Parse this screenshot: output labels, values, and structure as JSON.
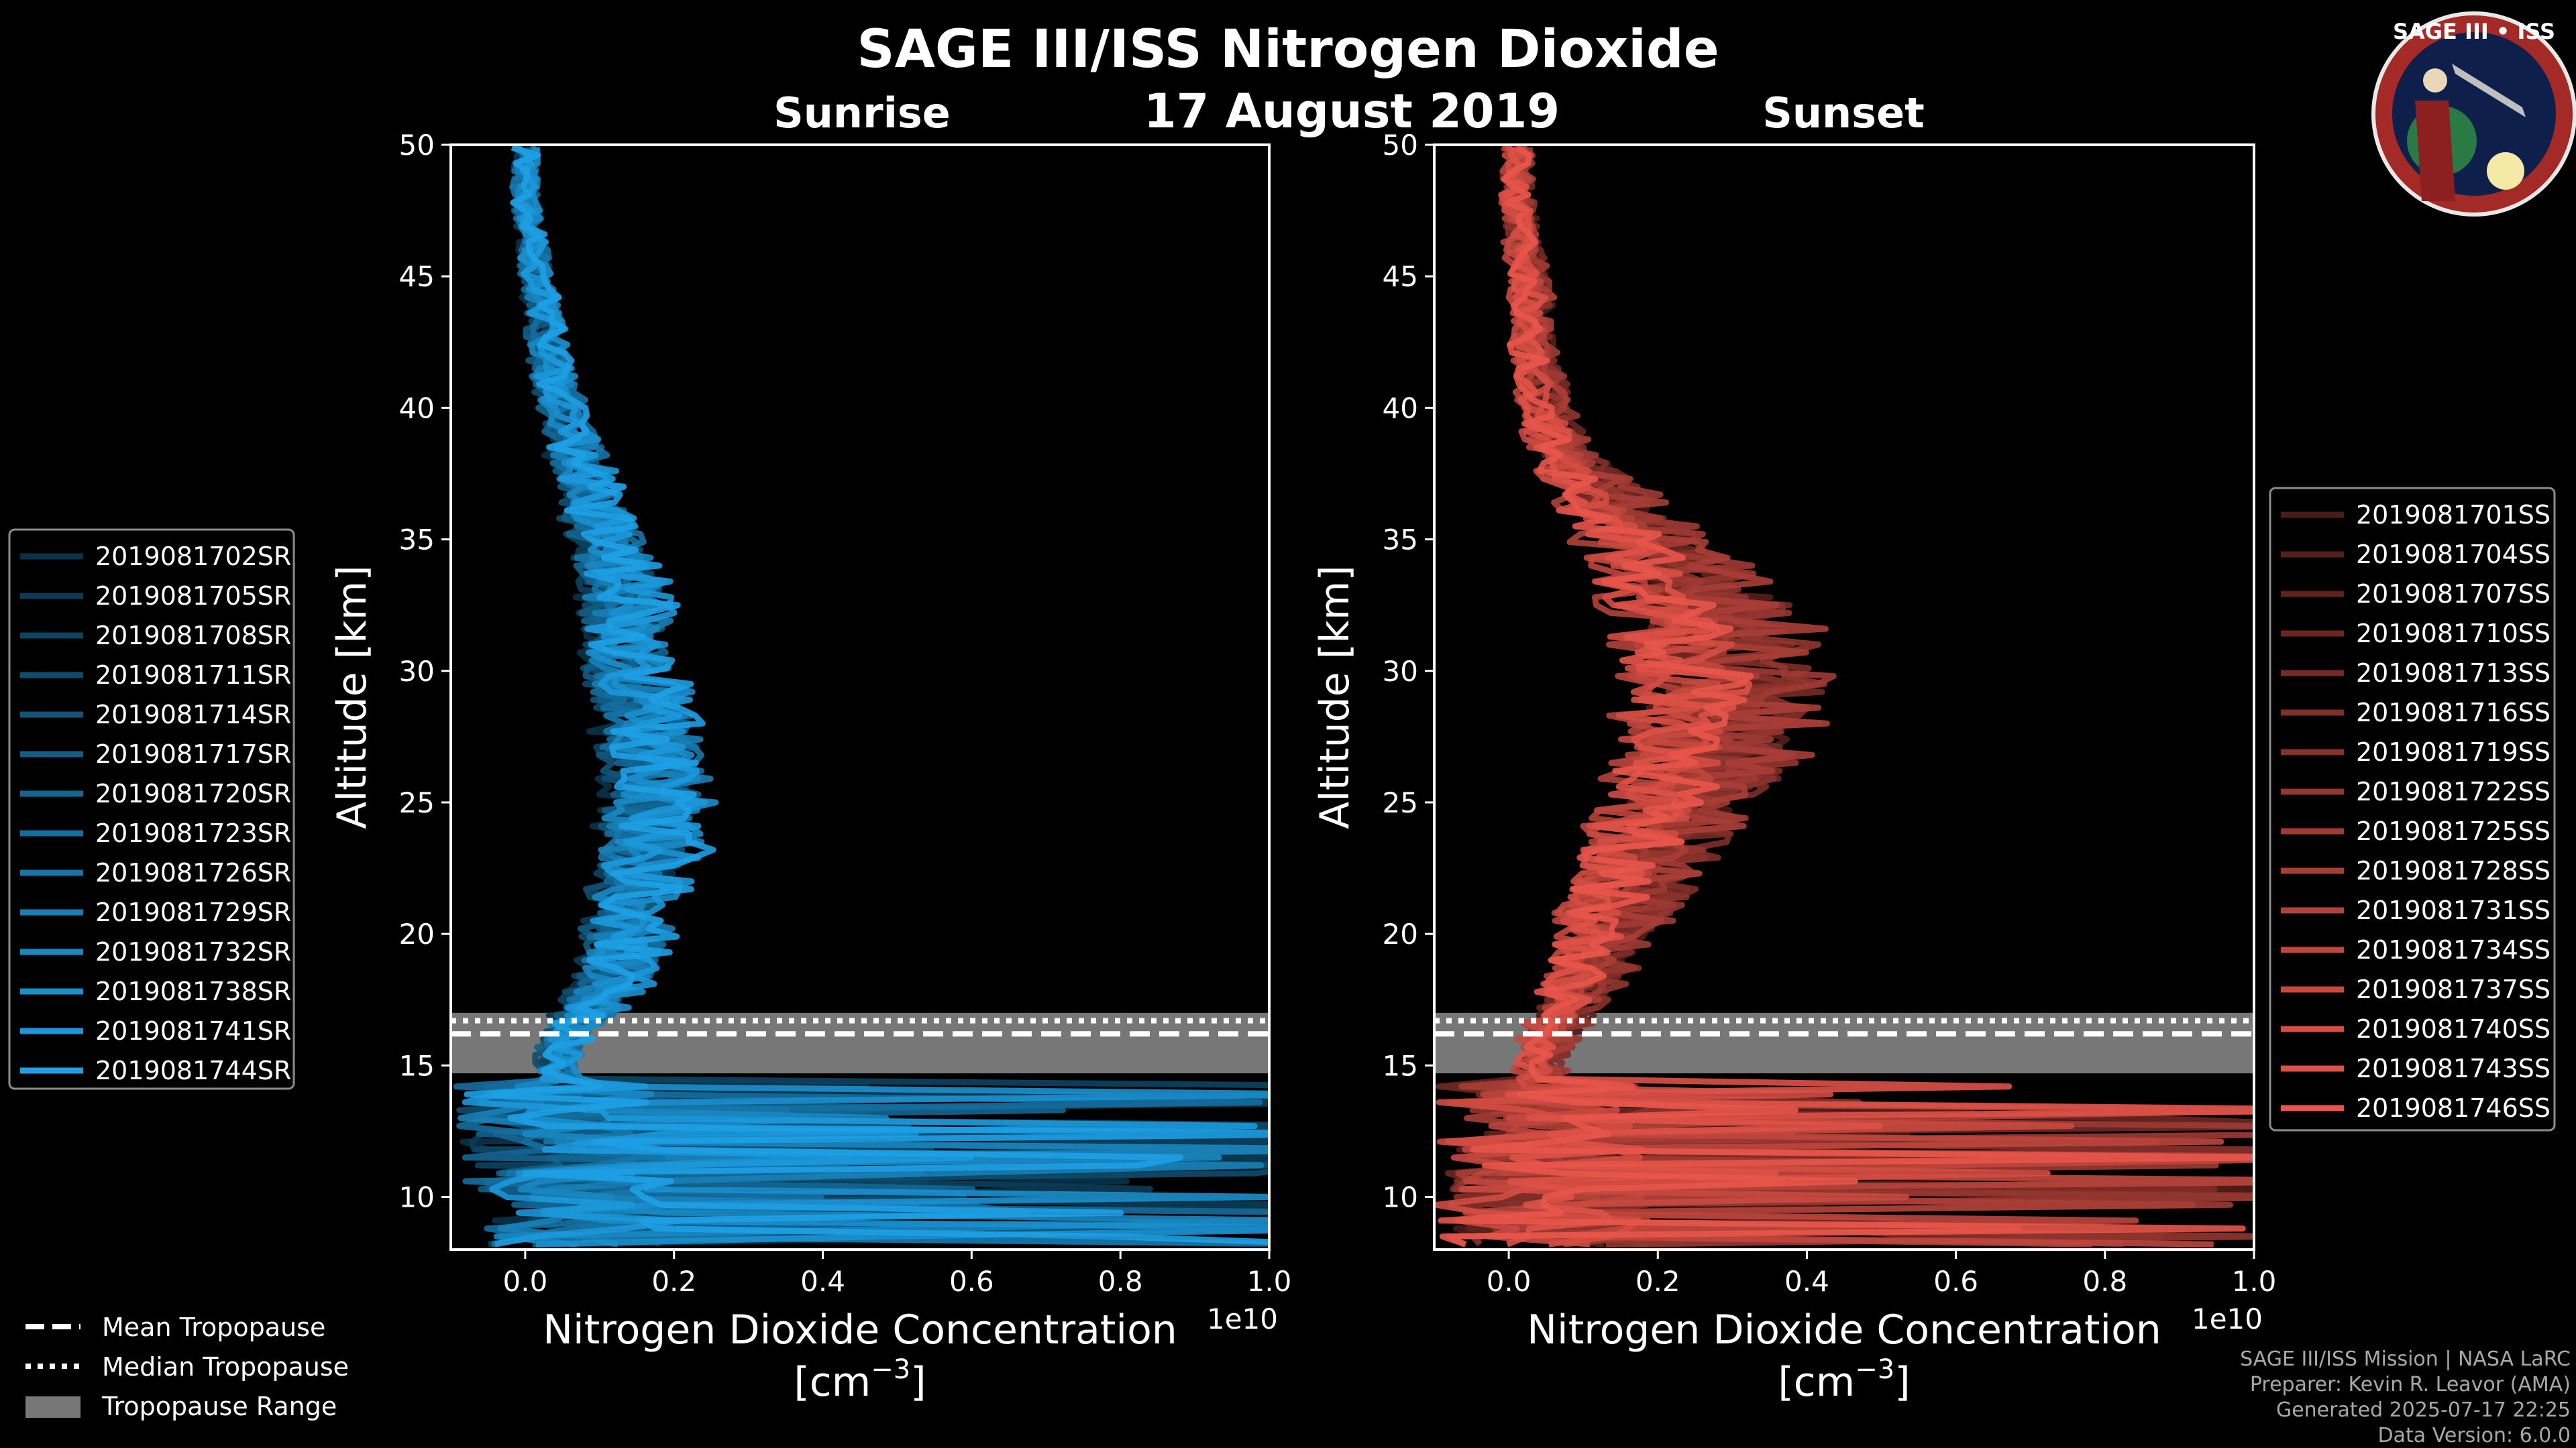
{
  "title": "SAGE III/ISS Nitrogen Dioxide",
  "date": "17 August 2019",
  "logo": {
    "text": "SAGE III • ISS"
  },
  "colors": {
    "sunrise": "#1ea0e6",
    "sunset": "#e8554a",
    "range": "#777777",
    "background": "#000000"
  },
  "tropopause_legend": {
    "mean": "Mean Tropopause",
    "median": "Median Tropopause",
    "range": "Tropopause Range"
  },
  "credits": [
    "SAGE III/ISS Mission | NASA LaRC",
    "Preparer: Kevin R. Leavor (AMA)",
    "Generated 2025-07-17 22:25",
    "Data Version: 6.0.0"
  ],
  "chart_data": [
    {
      "type": "line",
      "title": "Sunrise",
      "xlabel": "Nitrogen Dioxide Concentration",
      "xunit": "[cm",
      "xunit_exp": "−3",
      "xunit_close": "]",
      "ylabel": "Altitude [km]",
      "xlim": [
        -0.1,
        1.0
      ],
      "ylim": [
        8,
        50
      ],
      "x_scale_label": "1e10",
      "x_ticks": [
        0.0,
        0.2,
        0.4,
        0.6,
        0.8,
        1.0
      ],
      "x_tick_labels": [
        "0.0",
        "0.2",
        "0.4",
        "0.6",
        "0.8",
        "1.0"
      ],
      "y_ticks": [
        10,
        15,
        20,
        25,
        30,
        35,
        40,
        45,
        50
      ],
      "y_tick_labels": [
        "10",
        "15",
        "20",
        "25",
        "30",
        "35",
        "40",
        "45",
        "50"
      ],
      "tropopause": {
        "mean": 16.2,
        "median": 16.7,
        "range": [
          14.7,
          17.0
        ]
      },
      "mean_profile": {
        "altitudes": [
          8.5,
          10,
          12,
          13.5,
          15,
          16,
          17,
          18,
          19,
          20,
          21,
          22,
          23,
          24,
          25,
          26,
          27,
          28,
          29,
          30,
          31,
          32,
          33,
          34,
          35,
          36,
          37,
          38,
          39,
          40,
          42,
          44,
          46,
          48,
          50
        ],
        "values": [
          0.08,
          0.06,
          0.05,
          0.05,
          0.04,
          0.05,
          0.08,
          0.11,
          0.13,
          0.13,
          0.14,
          0.15,
          0.16,
          0.16,
          0.17,
          0.17,
          0.17,
          0.16,
          0.15,
          0.14,
          0.13,
          0.13,
          0.13,
          0.12,
          0.11,
          0.09,
          0.08,
          0.07,
          0.06,
          0.05,
          0.03,
          0.02,
          0.01,
          0.0,
          0.0
        ]
      },
      "series": [
        {
          "name": "2019081702SR"
        },
        {
          "name": "2019081705SR"
        },
        {
          "name": "2019081708SR"
        },
        {
          "name": "2019081711SR"
        },
        {
          "name": "2019081714SR"
        },
        {
          "name": "2019081717SR"
        },
        {
          "name": "2019081720SR"
        },
        {
          "name": "2019081723SR"
        },
        {
          "name": "2019081726SR"
        },
        {
          "name": "2019081729SR"
        },
        {
          "name": "2019081732SR"
        },
        {
          "name": "2019081738SR"
        },
        {
          "name": "2019081741SR"
        },
        {
          "name": "2019081744SR"
        }
      ]
    },
    {
      "type": "line",
      "title": "Sunset",
      "xlabel": "Nitrogen Dioxide Concentration",
      "xunit": "[cm",
      "xunit_exp": "−3",
      "xunit_close": "]",
      "ylabel": "Altitude [km]",
      "xlim": [
        -0.1,
        1.0
      ],
      "ylim": [
        8,
        50
      ],
      "x_scale_label": "1e10",
      "x_ticks": [
        0.0,
        0.2,
        0.4,
        0.6,
        0.8,
        1.0
      ],
      "x_tick_labels": [
        "0.0",
        "0.2",
        "0.4",
        "0.6",
        "0.8",
        "1.0"
      ],
      "y_ticks": [
        10,
        15,
        20,
        25,
        30,
        35,
        40,
        45,
        50
      ],
      "y_tick_labels": [
        "10",
        "15",
        "20",
        "25",
        "30",
        "35",
        "40",
        "45",
        "50"
      ],
      "tropopause": {
        "mean": 16.2,
        "median": 16.7,
        "range": [
          14.7,
          17.0
        ]
      },
      "mean_profile": {
        "altitudes": [
          8.5,
          10,
          12,
          13.5,
          15,
          16,
          17,
          18,
          19,
          20,
          21,
          22,
          23,
          24,
          25,
          26,
          27,
          28,
          29,
          30,
          31,
          32,
          33,
          34,
          35,
          36,
          37,
          38,
          39,
          40,
          42,
          44,
          46,
          48,
          50
        ],
        "values": [
          0.05,
          0.05,
          0.05,
          0.04,
          0.04,
          0.05,
          0.07,
          0.09,
          0.11,
          0.12,
          0.14,
          0.16,
          0.18,
          0.2,
          0.22,
          0.24,
          0.25,
          0.26,
          0.27,
          0.27,
          0.26,
          0.25,
          0.23,
          0.2,
          0.17,
          0.14,
          0.11,
          0.08,
          0.06,
          0.05,
          0.03,
          0.03,
          0.02,
          0.01,
          0.01
        ]
      },
      "series": [
        {
          "name": "2019081701SS"
        },
        {
          "name": "2019081704SS"
        },
        {
          "name": "2019081707SS"
        },
        {
          "name": "2019081710SS"
        },
        {
          "name": "2019081713SS"
        },
        {
          "name": "2019081716SS"
        },
        {
          "name": "2019081719SS"
        },
        {
          "name": "2019081722SS"
        },
        {
          "name": "2019081725SS"
        },
        {
          "name": "2019081728SS"
        },
        {
          "name": "2019081731SS"
        },
        {
          "name": "2019081734SS"
        },
        {
          "name": "2019081737SS"
        },
        {
          "name": "2019081740SS"
        },
        {
          "name": "2019081743SS"
        },
        {
          "name": "2019081746SS"
        }
      ]
    }
  ]
}
